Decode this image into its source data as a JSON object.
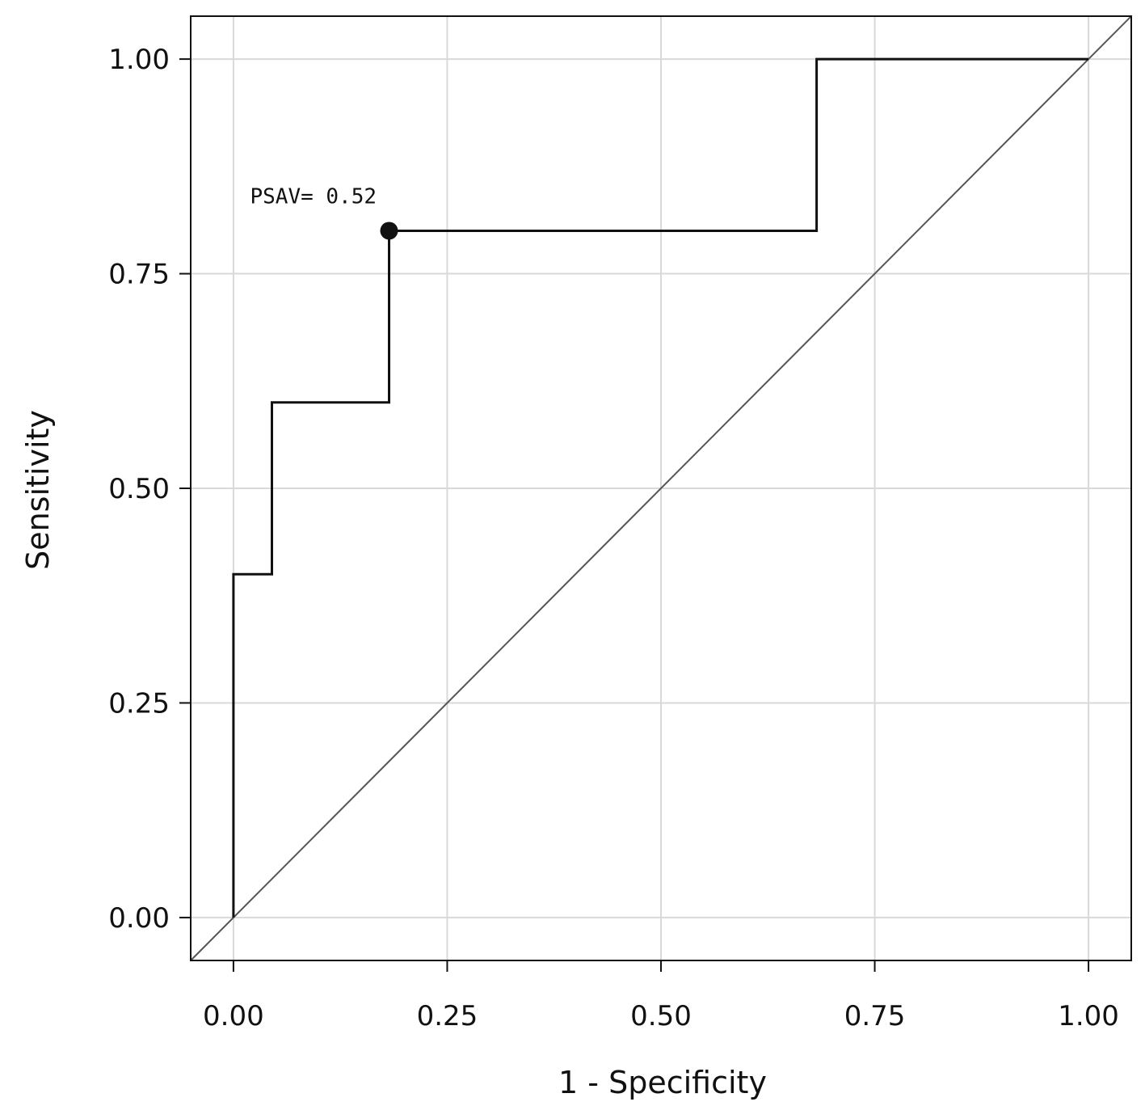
{
  "chart_data": {
    "type": "line",
    "title": "",
    "xlabel": "1 - Specificity",
    "ylabel": "Sensitivity",
    "xlim": [
      -0.05,
      1.05
    ],
    "ylim": [
      -0.05,
      1.05
    ],
    "grid": true,
    "x_ticks": [
      0,
      0.25,
      0.5,
      0.75,
      1
    ],
    "y_ticks": [
      0,
      0.25,
      0.5,
      0.75,
      1
    ],
    "x_tick_labels": [
      "0.00",
      "0.25",
      "0.50",
      "0.75",
      "1.00"
    ],
    "y_tick_labels": [
      "0.00",
      "0.25",
      "0.50",
      "0.75",
      "1.00"
    ],
    "series": [
      {
        "style": "step",
        "x": [
          0,
          0,
          0.045,
          0.045,
          0.182,
          0.182,
          0.682,
          0.682,
          1.0
        ],
        "y": [
          0,
          0.4,
          0.4,
          0.6,
          0.6,
          0.8,
          0.8,
          1.0,
          1.0
        ]
      },
      {
        "style": "reference-diagonal",
        "x": [
          -0.05,
          1.05
        ],
        "y": [
          -0.05,
          1.05
        ]
      }
    ],
    "highlight_point": {
      "x": 0.182,
      "y": 0.8,
      "label": "PSAV=  0.52"
    },
    "colors": {
      "curve": "#111111",
      "diagonal": "#555555",
      "grid": "#d9d9d9",
      "frame": "#111111"
    }
  }
}
